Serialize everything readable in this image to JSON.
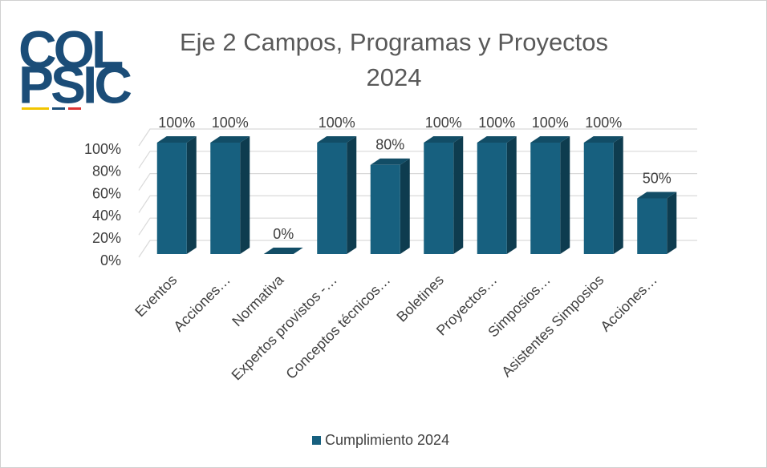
{
  "chart_data": {
    "type": "bar3d",
    "logo": [
      "COL",
      "PSIC"
    ],
    "title": "Eje 2 Campos, Programas y Proyectos 2024",
    "categories": [
      "Eventos",
      "Acciones…",
      "Normativa",
      "Expertos provistos -…",
      "Conceptos técnicos…",
      "Boletines",
      "Proyectos…",
      "Simposios…",
      "Asistentes Simposios",
      "Acciones…"
    ],
    "series": [
      {
        "name": "Cumplimiento 2024",
        "color": "#17607f",
        "values": [
          100,
          100,
          0,
          100,
          80,
          100,
          100,
          100,
          100,
          50
        ],
        "value_labels": [
          "100%",
          "100%",
          "0%",
          "100%",
          "80%",
          "100%",
          "100%",
          "100%",
          "100%",
          "50%"
        ]
      }
    ],
    "ylim": [
      0,
      100
    ],
    "yticks": [
      {
        "value": 0,
        "label": "0%"
      },
      {
        "value": 20,
        "label": "20%"
      },
      {
        "value": 40,
        "label": "40%"
      },
      {
        "value": 60,
        "label": "60%"
      },
      {
        "value": 80,
        "label": "80%"
      },
      {
        "value": 100,
        "label": "100%"
      }
    ],
    "grid": true,
    "legend": "bottom"
  }
}
